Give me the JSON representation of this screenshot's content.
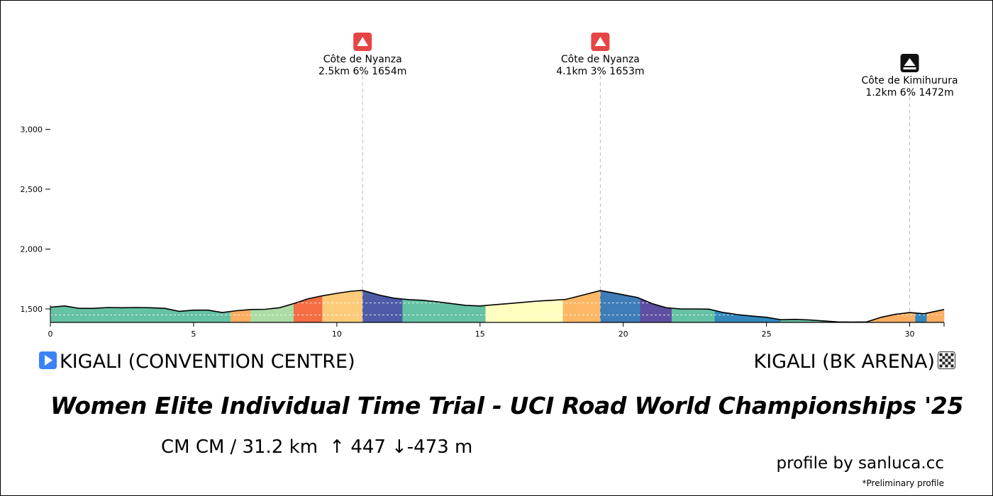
{
  "chart_data": {
    "type": "area",
    "title": "Women Elite Individual Time Trial - UCI Road World Championships '25",
    "xlabel": "",
    "ylabel": "",
    "xlim": [
      0,
      31.2
    ],
    "ylim": [
      1380,
      3200
    ],
    "x_ticks": [
      0,
      5,
      10,
      15,
      20,
      25,
      30
    ],
    "y_ticks": [
      1500,
      2000,
      2500,
      3000
    ],
    "y_tick_labels": [
      "1,500",
      "2,000",
      "2,500",
      "3,000"
    ],
    "profile": {
      "x": [
        0,
        0.5,
        1.0,
        1.5,
        2.0,
        2.5,
        3.0,
        3.5,
        4.0,
        4.5,
        5.0,
        5.5,
        6.0,
        6.5,
        7.0,
        7.5,
        8.0,
        8.5,
        9.0,
        9.5,
        10.0,
        10.5,
        10.9,
        11.5,
        12.0,
        12.5,
        13.0,
        13.5,
        14.0,
        14.5,
        15.0,
        15.5,
        16.0,
        16.5,
        17.0,
        17.5,
        18.0,
        18.5,
        19.2,
        19.8,
        20.5,
        21.0,
        21.5,
        22.0,
        22.5,
        23.0,
        23.5,
        24.0,
        24.5,
        25.0,
        25.5,
        26.0,
        26.5,
        27.0,
        27.5,
        28.0,
        28.5,
        29.0,
        29.5,
        30.0,
        30.5,
        31.2
      ],
      "y": [
        1515,
        1525,
        1505,
        1505,
        1512,
        1510,
        1512,
        1510,
        1505,
        1480,
        1490,
        1490,
        1470,
        1485,
        1495,
        1497,
        1510,
        1545,
        1585,
        1610,
        1630,
        1648,
        1655,
        1615,
        1590,
        1578,
        1572,
        1560,
        1545,
        1530,
        1525,
        1535,
        1545,
        1555,
        1565,
        1572,
        1580,
        1610,
        1653,
        1628,
        1595,
        1545,
        1510,
        1500,
        1500,
        1498,
        1470,
        1452,
        1440,
        1430,
        1410,
        1413,
        1408,
        1400,
        1392,
        1390,
        1392,
        1430,
        1455,
        1470,
        1460,
        1495
      ]
    },
    "segments": [
      {
        "from": 0,
        "to": 6.3,
        "color": "#66c2a5"
      },
      {
        "from": 6.3,
        "to": 7.0,
        "color": "#fdae61"
      },
      {
        "from": 7.0,
        "to": 8.5,
        "color": "#abdda4"
      },
      {
        "from": 8.5,
        "to": 9.5,
        "color": "#f46d43"
      },
      {
        "from": 9.5,
        "to": 10.9,
        "color": "#fdcb7a"
      },
      {
        "from": 10.9,
        "to": 12.3,
        "color": "#4e5ca8"
      },
      {
        "from": 12.3,
        "to": 15.2,
        "color": "#66c2a5"
      },
      {
        "from": 15.2,
        "to": 17.9,
        "color": "#ffffbf"
      },
      {
        "from": 17.9,
        "to": 19.2,
        "color": "#fdb866"
      },
      {
        "from": 19.2,
        "to": 20.6,
        "color": "#3e7db8"
      },
      {
        "from": 20.6,
        "to": 21.7,
        "color": "#5e4fa2"
      },
      {
        "from": 21.7,
        "to": 23.2,
        "color": "#66c2a5"
      },
      {
        "from": 23.2,
        "to": 25.5,
        "color": "#3288bd"
      },
      {
        "from": 25.5,
        "to": 28.3,
        "color": "#66c2a5"
      },
      {
        "from": 28.3,
        "to": 30.2,
        "color": "#fdae61"
      },
      {
        "from": 30.2,
        "to": 30.6,
        "color": "#3288bd"
      },
      {
        "from": 30.6,
        "to": 31.2,
        "color": "#fdae61"
      }
    ],
    "climbs": [
      {
        "name": "Côte de Nyanza",
        "stats": "2.5km 6% 1654m",
        "km": 10.9,
        "icon": "mountain-category-icon",
        "icon_color": "#e54545"
      },
      {
        "name": "Côte de Nyanza",
        "stats": "4.1km 3% 1653m",
        "km": 19.2,
        "icon": "mountain-category-icon",
        "icon_color": "#e54545"
      },
      {
        "name": "Côte de Kimihurura",
        "stats": "1.2km 6% 1472m",
        "km": 30.0,
        "icon": "cobbled-climb-icon",
        "icon_color": "#111111"
      }
    ]
  },
  "start": {
    "name": "KIGALI (CONVENTION CENTRE)",
    "icon": "play-icon",
    "icon_color": "#3b82f6"
  },
  "finish": {
    "name": "KIGALI (BK ARENA)",
    "icon": "checkered-flag-icon"
  },
  "stats": {
    "type": "CM CM",
    "distance": "/ 31.2 km",
    "climb": "↑ 447",
    "descent": "↓-473 m"
  },
  "credit": "profile by sanluca.cc",
  "note": "*Preliminary profile"
}
